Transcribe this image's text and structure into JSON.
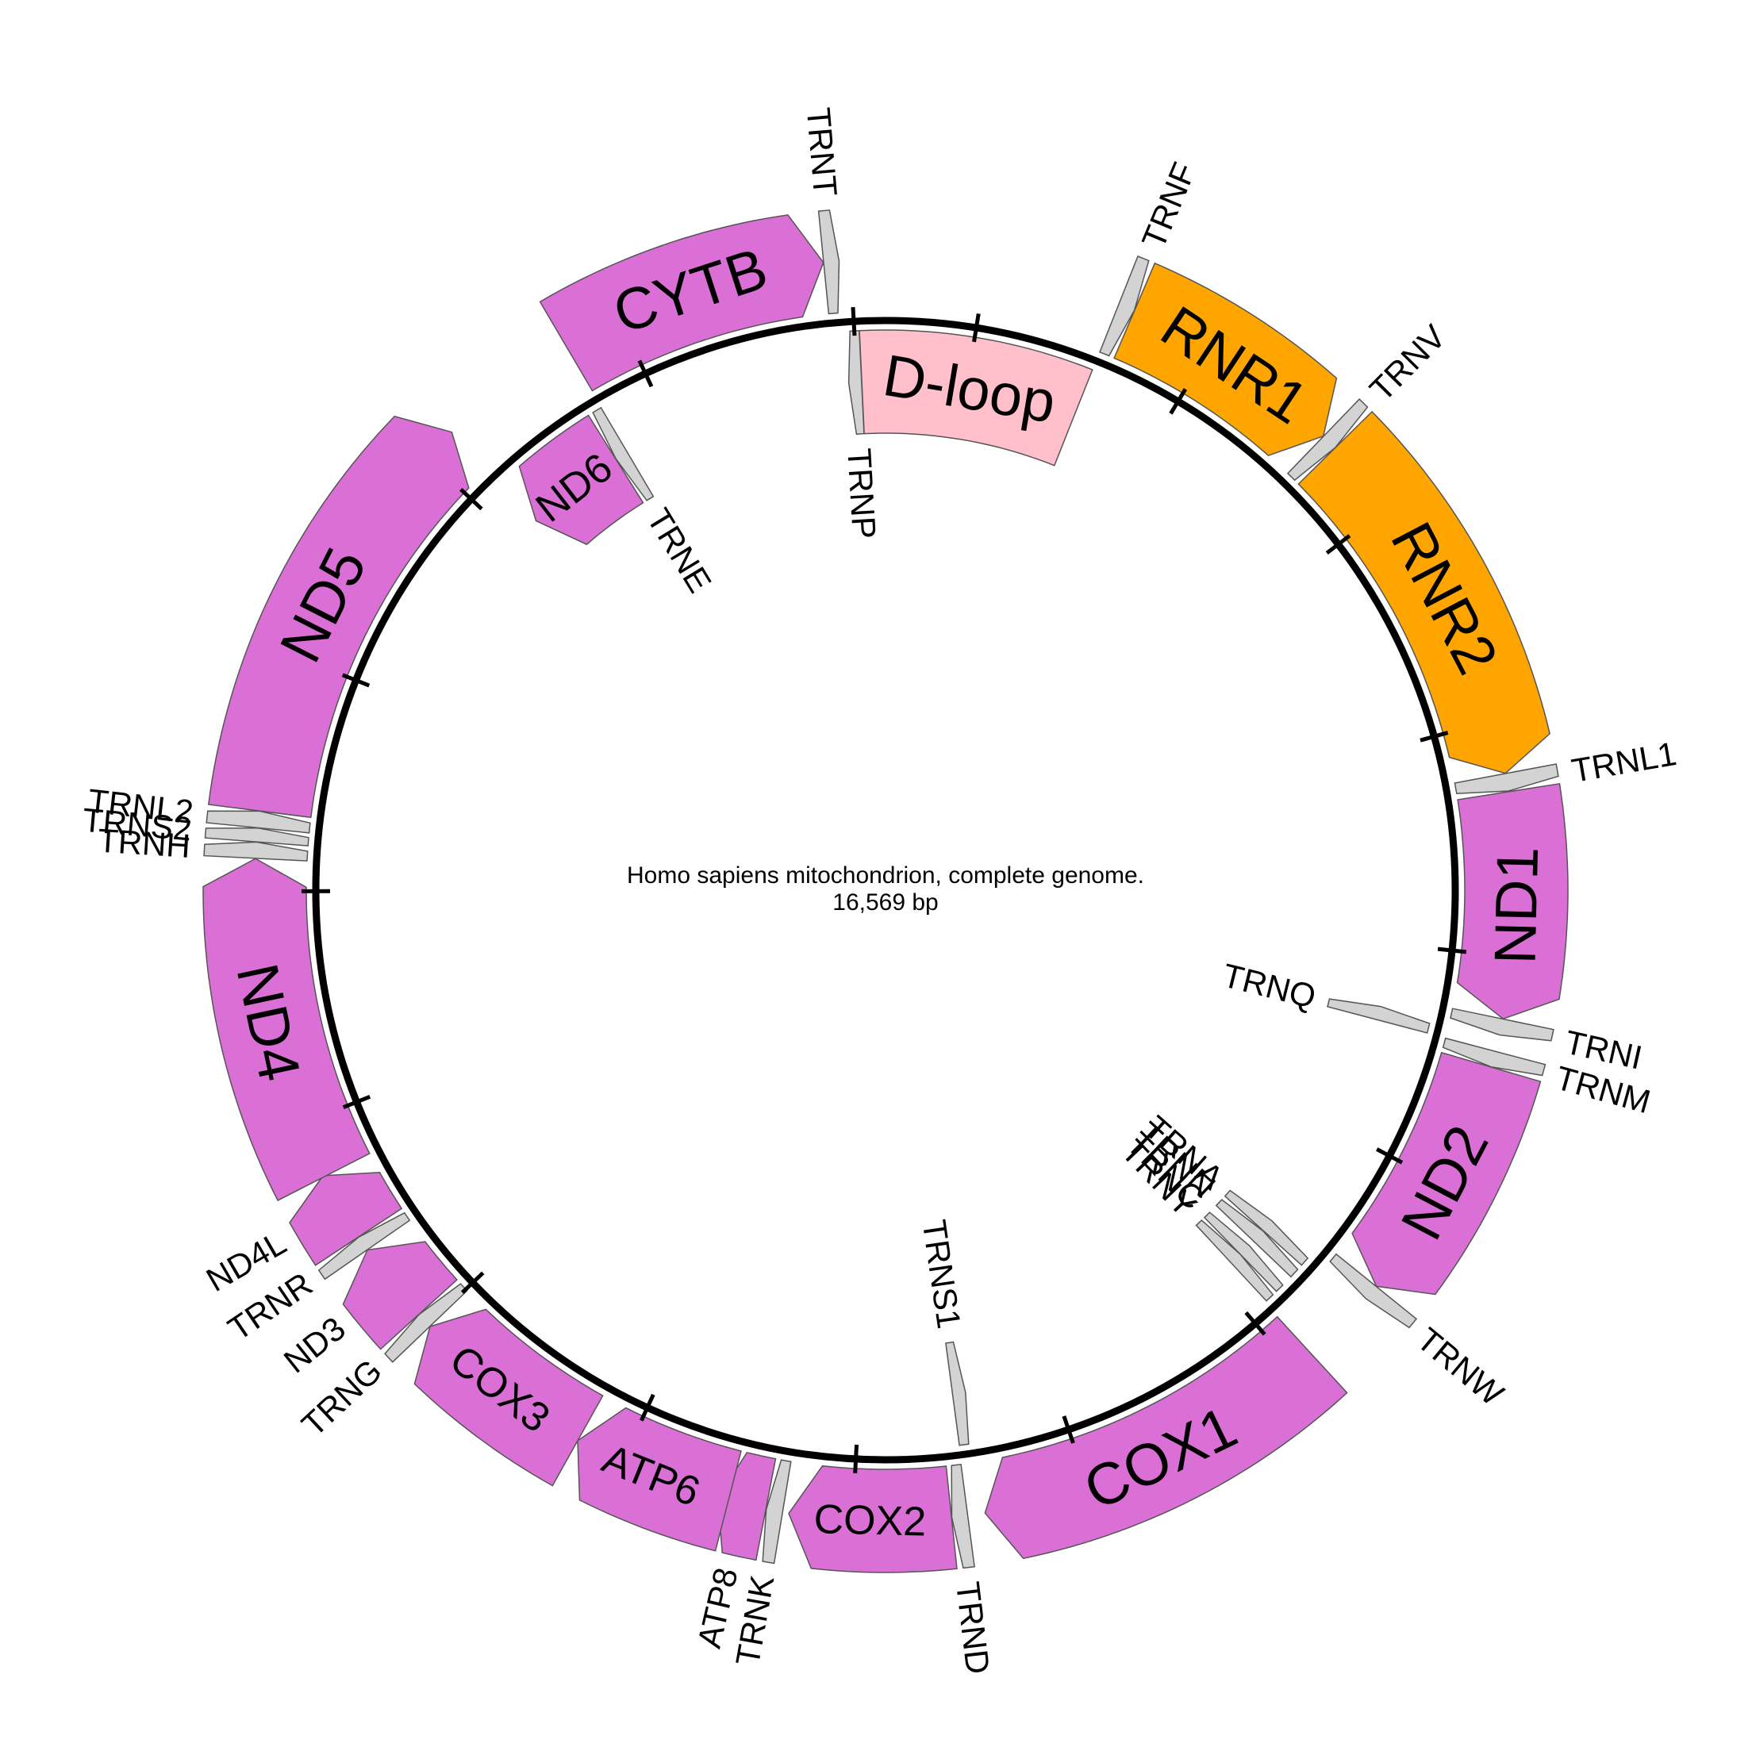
{
  "title": "Homo sapiens mitochondrion, complete genome.",
  "length_label": "16,569 bp",
  "colors": {
    "protein": "#da70d6",
    "rrna": "#ffa500",
    "trna": "#d3d3d3",
    "dloop": "#ffc0cb",
    "backbone": "#000000"
  },
  "genome_length": 16569,
  "features": [
    {
      "name": "D-loop",
      "type": "dloop",
      "start": 16024,
      "end": 576,
      "strand": 0
    },
    {
      "name": "TRNF",
      "type": "trna",
      "start": 577,
      "end": 647,
      "strand": 1
    },
    {
      "name": "RNR1",
      "type": "rrna",
      "start": 648,
      "end": 1601,
      "strand": 1
    },
    {
      "name": "TRNV",
      "type": "trna",
      "start": 1602,
      "end": 1670,
      "strand": 1
    },
    {
      "name": "RNR2",
      "type": "rrna",
      "start": 1671,
      "end": 3229,
      "strand": 1
    },
    {
      "name": "TRNL1",
      "type": "trna",
      "start": 3230,
      "end": 3304,
      "strand": 1
    },
    {
      "name": "ND1",
      "type": "protein",
      "start": 3307,
      "end": 4262,
      "strand": 1
    },
    {
      "name": "TRNI",
      "type": "trna",
      "start": 4263,
      "end": 4331,
      "strand": 1
    },
    {
      "name": "TRNQ",
      "type": "trna",
      "start": 4329,
      "end": 4400,
      "strand": -1
    },
    {
      "name": "TRNM",
      "type": "trna",
      "start": 4402,
      "end": 4469,
      "strand": 1
    },
    {
      "name": "ND2",
      "type": "protein",
      "start": 4470,
      "end": 5511,
      "strand": 1
    },
    {
      "name": "TRNW",
      "type": "trna",
      "start": 5512,
      "end": 5579,
      "strand": 1
    },
    {
      "name": "TRNA",
      "type": "trna",
      "start": 5587,
      "end": 5655,
      "strand": -1
    },
    {
      "name": "TRNN",
      "type": "trna",
      "start": 5657,
      "end": 5729,
      "strand": -1
    },
    {
      "name": "TRNC",
      "type": "trna",
      "start": 5761,
      "end": 5826,
      "strand": -1
    },
    {
      "name": "TRNY",
      "type": "trna",
      "start": 5826,
      "end": 5891,
      "strand": -1
    },
    {
      "name": "COX1",
      "type": "protein",
      "start": 5904,
      "end": 7445,
      "strand": 1
    },
    {
      "name": "TRNS1",
      "type": "trna",
      "start": 7446,
      "end": 7514,
      "strand": -1
    },
    {
      "name": "TRND",
      "type": "trna",
      "start": 7518,
      "end": 7585,
      "strand": 1
    },
    {
      "name": "COX2",
      "type": "protein",
      "start": 7586,
      "end": 8269,
      "strand": 1
    },
    {
      "name": "TRNK",
      "type": "trna",
      "start": 8295,
      "end": 8364,
      "strand": 1
    },
    {
      "name": "ATP8",
      "type": "protein",
      "start": 8366,
      "end": 8572,
      "strand": 1
    },
    {
      "name": "ATP6",
      "type": "protein",
      "start": 8527,
      "end": 9207,
      "strand": 1
    },
    {
      "name": "COX3",
      "type": "protein",
      "start": 9207,
      "end": 9990,
      "strand": 1
    },
    {
      "name": "TRNG",
      "type": "trna",
      "start": 9991,
      "end": 10058,
      "strand": 1
    },
    {
      "name": "ND3",
      "type": "protein",
      "start": 10059,
      "end": 10404,
      "strand": 1
    },
    {
      "name": "TRNR",
      "type": "trna",
      "start": 10405,
      "end": 10469,
      "strand": 1
    },
    {
      "name": "ND4L",
      "type": "protein",
      "start": 10470,
      "end": 10766,
      "strand": 1
    },
    {
      "name": "ND4",
      "type": "protein",
      "start": 10760,
      "end": 12137,
      "strand": 1
    },
    {
      "name": "TRNH",
      "type": "trna",
      "start": 12138,
      "end": 12206,
      "strand": 1
    },
    {
      "name": "TRNS2",
      "type": "trna",
      "start": 12207,
      "end": 12265,
      "strand": 1
    },
    {
      "name": "TRNL2",
      "type": "trna",
      "start": 12266,
      "end": 12336,
      "strand": 1
    },
    {
      "name": "ND5",
      "type": "protein",
      "start": 12337,
      "end": 14148,
      "strand": 1
    },
    {
      "name": "ND6",
      "type": "protein",
      "start": 14149,
      "end": 14673,
      "strand": -1
    },
    {
      "name": "TRNE",
      "type": "trna",
      "start": 14674,
      "end": 14742,
      "strand": -1
    },
    {
      "name": "CYTB",
      "type": "protein",
      "start": 14747,
      "end": 15887,
      "strand": 1
    },
    {
      "name": "TRNT",
      "type": "trna",
      "start": 15888,
      "end": 15953,
      "strand": 1
    },
    {
      "name": "TRNP",
      "type": "trna",
      "start": 15956,
      "end": 16023,
      "strand": -1
    }
  ]
}
